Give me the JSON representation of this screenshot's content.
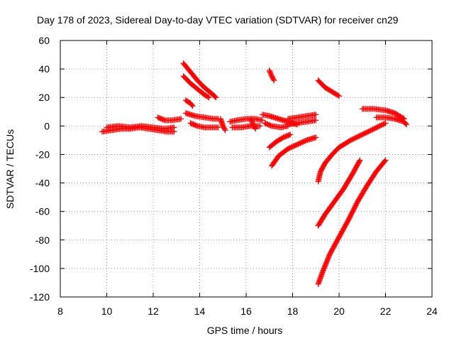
{
  "chart_data": {
    "type": "scatter",
    "title": "Day 178 of 2023, Sidereal Day-to-day VTEC variation (SDTVAR) for receiver cn29",
    "xlabel": "GPS time / hours",
    "ylabel": "SDTVAR / TECUs",
    "xlim": [
      8,
      24
    ],
    "ylim": [
      -120,
      60
    ],
    "xticks": [
      8,
      10,
      12,
      14,
      16,
      18,
      20,
      22,
      24
    ],
    "yticks": [
      -120,
      -100,
      -80,
      -60,
      -40,
      -20,
      0,
      20,
      40,
      60
    ],
    "grid": true,
    "marker": "plus",
    "color": "#ff0000",
    "segments": [
      {
        "x": [
          9.8,
          10.2,
          10.6,
          11.0,
          11.4,
          11.8,
          12.2,
          12.6,
          12.9
        ],
        "y": [
          -4,
          -3,
          -2,
          -2,
          -1,
          -2,
          -3,
          -4,
          -4
        ]
      },
      {
        "x": [
          10.0,
          10.5,
          11.0,
          11.5,
          12.0,
          12.5,
          12.9
        ],
        "y": [
          -1,
          0,
          -1,
          0,
          -1,
          -2,
          -1
        ]
      },
      {
        "x": [
          12.2,
          12.5,
          12.8,
          13.2
        ],
        "y": [
          6,
          4,
          4,
          5
        ]
      },
      {
        "x": [
          13.3,
          13.6,
          13.9,
          14.2,
          14.5,
          14.7
        ],
        "y": [
          44,
          38,
          32,
          27,
          23,
          20
        ]
      },
      {
        "x": [
          13.3,
          13.6,
          13.9,
          14.2,
          14.4
        ],
        "y": [
          35,
          30,
          26,
          22,
          20
        ]
      },
      {
        "x": [
          13.4,
          13.6,
          13.7
        ],
        "y": [
          18,
          16,
          14
        ]
      },
      {
        "x": [
          13.4,
          13.8,
          14.2,
          14.6,
          14.8
        ],
        "y": [
          9,
          7,
          6,
          5,
          5
        ]
      },
      {
        "x": [
          13.6,
          13.9,
          14.2,
          14.5,
          14.8
        ],
        "y": [
          2,
          0,
          -1,
          -1,
          -1
        ]
      },
      {
        "x": [
          14.9,
          15.0,
          15.1
        ],
        "y": [
          5,
          0,
          -3
        ]
      },
      {
        "x": [
          15.3,
          15.6,
          16.0,
          16.4,
          16.7
        ],
        "y": [
          3,
          4,
          5,
          5,
          4
        ]
      },
      {
        "x": [
          15.4,
          15.8,
          16.2,
          16.6
        ],
        "y": [
          -1,
          -1,
          0,
          0
        ]
      },
      {
        "x": [
          16.2,
          16.3,
          16.4
        ],
        "y": [
          5,
          1,
          -2
        ]
      },
      {
        "x": [
          16.7,
          17.0,
          17.4,
          17.8,
          18.2
        ],
        "y": [
          8,
          7,
          5,
          3,
          1
        ]
      },
      {
        "x": [
          16.8,
          17.1,
          17.5,
          17.8
        ],
        "y": [
          2,
          0,
          -1,
          0
        ]
      },
      {
        "x": [
          17.0,
          17.1,
          17.2
        ],
        "y": [
          39,
          35,
          32
        ]
      },
      {
        "x": [
          17.0,
          17.3,
          17.6,
          17.9
        ],
        "y": [
          -15,
          -11,
          -8,
          -6
        ]
      },
      {
        "x": [
          17.1,
          17.4,
          17.8,
          18.2,
          18.6,
          19.0
        ],
        "y": [
          -28,
          -21,
          -16,
          -13,
          -10,
          -8
        ]
      },
      {
        "x": [
          17.8,
          18.2,
          18.6,
          19.0
        ],
        "y": [
          5,
          6,
          7,
          8
        ]
      },
      {
        "x": [
          17.8,
          18.2,
          18.6,
          19.0
        ],
        "y": [
          1,
          2,
          3,
          4
        ]
      },
      {
        "x": [
          19.1,
          19.4,
          19.7,
          20.0
        ],
        "y": [
          32,
          27,
          24,
          21
        ]
      },
      {
        "x": [
          19.1,
          19.2,
          19.4,
          19.7,
          20.0,
          20.5,
          21.0,
          21.5,
          22.0
        ],
        "y": [
          -39,
          -32,
          -26,
          -20,
          -15,
          -10,
          -6,
          -2,
          2
        ]
      },
      {
        "x": [
          19.1,
          19.4,
          19.8,
          20.2,
          20.6,
          20.9
        ],
        "y": [
          -70,
          -62,
          -53,
          -44,
          -33,
          -24
        ]
      },
      {
        "x": [
          19.1,
          19.3,
          19.6,
          20.0,
          20.4,
          20.8,
          21.2,
          21.6,
          22.0
        ],
        "y": [
          -111,
          -102,
          -90,
          -78,
          -66,
          -53,
          -42,
          -32,
          -24
        ]
      },
      {
        "x": [
          21.0,
          21.5,
          22.0,
          22.4,
          22.8
        ],
        "y": [
          12,
          12,
          11,
          9,
          5
        ]
      },
      {
        "x": [
          21.6,
          22.0,
          22.4,
          22.8,
          22.9
        ],
        "y": [
          6,
          6,
          5,
          3,
          1
        ]
      }
    ]
  }
}
